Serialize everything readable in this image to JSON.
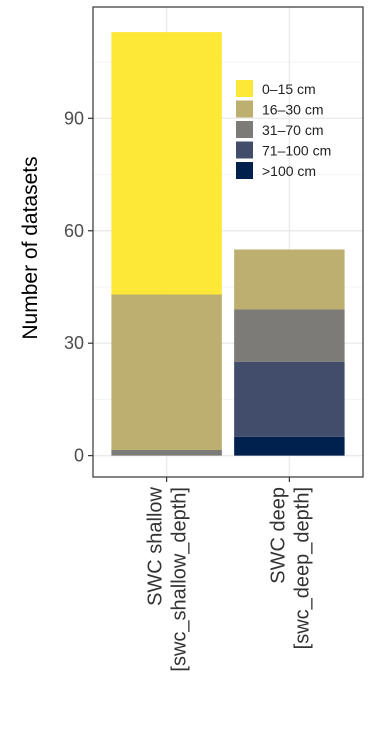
{
  "chart_data": {
    "type": "bar",
    "stacked": true,
    "categories": [
      [
        "SWC shallow",
        "[swc_shallow_depth]"
      ],
      [
        "SWC deep",
        "[swc_deep_depth]"
      ]
    ],
    "series": [
      {
        "name": ">100 cm",
        "color": "#00204d",
        "values": [
          0,
          5
        ]
      },
      {
        "name": "71–100 cm",
        "color": "#414d6b",
        "values": [
          0,
          20
        ]
      },
      {
        "name": "31–70 cm",
        "color": "#7c7b78",
        "values": [
          1.5,
          14
        ]
      },
      {
        "name": "16–30 cm",
        "color": "#bcaf6f",
        "values": [
          41.5,
          16
        ]
      },
      {
        "name": "0–15 cm",
        "color": "#fde737",
        "values": [
          70,
          0
        ]
      }
    ],
    "legend_order": [
      "0–15 cm",
      "16–30 cm",
      "31–70 cm",
      "71–100 cm",
      ">100 cm"
    ],
    "ylabel": "Number of datasets",
    "xlabel": "",
    "yticks": [
      0,
      30,
      60,
      90
    ],
    "ylim": [
      -5.7,
      119.7
    ],
    "grid": true,
    "legend_position": "inside-top-right",
    "colors": {
      "panel_border": "#333333",
      "grid_major": "#ebebeb",
      "grid_minor": "#f5f5f5",
      "tick": "#333333"
    }
  }
}
